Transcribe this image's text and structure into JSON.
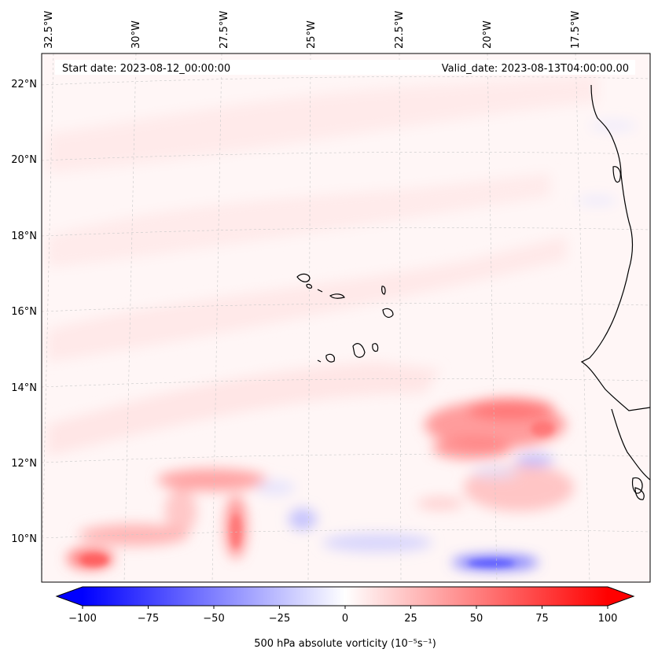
{
  "map": {
    "start_date_label": "Start date: 2023-08-12_00:00:00",
    "valid_date_label": "Valid_date: 2023-08-13T04:00:00.00",
    "lon_labels": [
      "32.5°W",
      "30°W",
      "27.5°W",
      "25°W",
      "22.5°W",
      "20°W",
      "17.5°W"
    ],
    "lat_labels": [
      "22°N",
      "20°N",
      "18°N",
      "16°N",
      "14°N",
      "12°N",
      "10°N"
    ],
    "colorbar": {
      "label": "500 hPa absolute vorticity (10⁻⁵s⁻¹)",
      "min": -100,
      "max": 100,
      "tick_labels": [
        "−100",
        "−75",
        "−50",
        "−25",
        "0",
        "25",
        "50",
        "75",
        "100"
      ],
      "low_color": "#0000ff",
      "high_color": "#ff0000",
      "mid_color": "#ffffff"
    },
    "colors": {
      "coastline": "#000000",
      "gridline": "#c8c8c8",
      "background": "#fff6f6"
    }
  }
}
